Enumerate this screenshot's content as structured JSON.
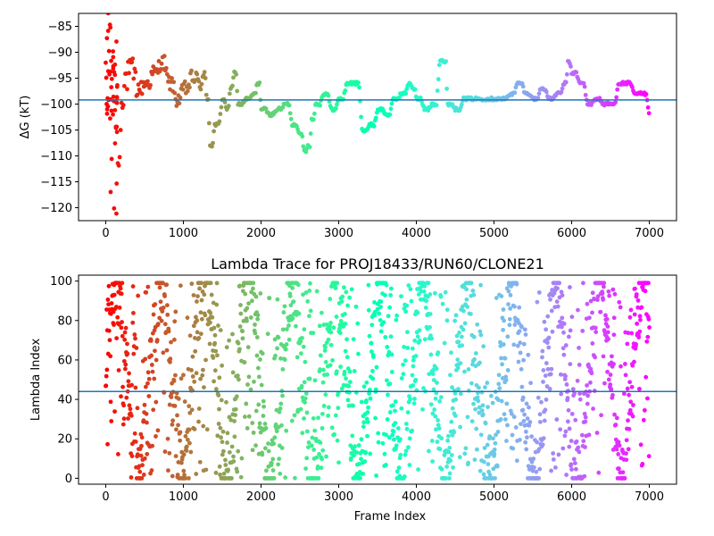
{
  "chart_data": [
    {
      "type": "scatter",
      "title": "",
      "xlabel": "",
      "ylabel": "ΔG (kT)",
      "xlim": [
        -350,
        7350
      ],
      "ylim": [
        -122.5,
        -82.5
      ],
      "xticks": [
        0,
        1000,
        2000,
        3000,
        4000,
        5000,
        6000,
        7000
      ],
      "xtick_labels": [
        "0",
        "1000",
        "2000",
        "3000",
        "4000",
        "5000",
        "6000",
        "7000"
      ],
      "yticks": [
        -85,
        -90,
        -95,
        -100,
        -105,
        -110,
        -115,
        -120
      ],
      "ytick_labels": [
        "−85",
        "−90",
        "−95",
        "−100",
        "−105",
        "−110",
        "−115",
        "−120"
      ],
      "colormap": "rainbow (red at frame 0 to violet at frame 7000)",
      "hline": -99.2,
      "hline_color": "#1f77b4",
      "profile": [
        [
          0,
          -100
        ],
        [
          40,
          -96
        ],
        [
          80,
          -89
        ],
        [
          120,
          -104
        ],
        [
          160,
          -111
        ],
        [
          200,
          -98
        ],
        [
          250,
          -95
        ],
        [
          300,
          -94
        ],
        [
          400,
          -97
        ],
        [
          500,
          -96
        ],
        [
          600,
          -94
        ],
        [
          700,
          -92
        ],
        [
          800,
          -96
        ],
        [
          900,
          -99
        ],
        [
          1000,
          -97
        ],
        [
          1100,
          -95
        ],
        [
          1200,
          -96
        ],
        [
          1250,
          -95
        ],
        [
          1300,
          -99
        ],
        [
          1340,
          -108
        ],
        [
          1400,
          -104
        ],
        [
          1500,
          -99
        ],
        [
          1550,
          -101
        ],
        [
          1600,
          -97
        ],
        [
          1650,
          -94
        ],
        [
          1700,
          -100
        ],
        [
          1800,
          -99
        ],
        [
          1900,
          -98
        ],
        [
          1950,
          -96
        ],
        [
          2000,
          -101
        ],
        [
          2100,
          -102
        ],
        [
          2200,
          -101
        ],
        [
          2300,
          -100
        ],
        [
          2400,
          -104
        ],
        [
          2500,
          -106
        ],
        [
          2550,
          -109
        ],
        [
          2600,
          -108
        ],
        [
          2650,
          -103
        ],
        [
          2700,
          -100
        ],
        [
          2800,
          -98
        ],
        [
          2900,
          -101
        ],
        [
          3000,
          -99
        ],
        [
          3100,
          -96
        ],
        [
          3200,
          -96
        ],
        [
          3300,
          -105
        ],
        [
          3400,
          -104
        ],
        [
          3500,
          -101
        ],
        [
          3600,
          -102
        ],
        [
          3700,
          -99
        ],
        [
          3800,
          -98
        ],
        [
          3900,
          -96
        ],
        [
          3950,
          -97
        ],
        [
          4000,
          -99
        ],
        [
          4100,
          -101
        ],
        [
          4200,
          -100
        ],
        [
          4300,
          -91.5
        ],
        [
          4350,
          -92
        ],
        [
          4400,
          -100
        ],
        [
          4500,
          -101
        ],
        [
          4600,
          -99
        ],
        [
          4700,
          -99
        ],
        [
          4800,
          -99
        ],
        [
          4900,
          -99
        ],
        [
          5000,
          -99
        ],
        [
          5100,
          -99
        ],
        [
          5200,
          -98
        ],
        [
          5300,
          -96
        ],
        [
          5400,
          -98
        ],
        [
          5500,
          -99
        ],
        [
          5600,
          -97
        ],
        [
          5700,
          -99
        ],
        [
          5800,
          -98
        ],
        [
          5900,
          -96
        ],
        [
          5950,
          -92
        ],
        [
          6000,
          -94
        ],
        [
          6100,
          -96
        ],
        [
          6200,
          -100
        ],
        [
          6300,
          -99
        ],
        [
          6400,
          -100
        ],
        [
          6500,
          -100
        ],
        [
          6600,
          -96
        ],
        [
          6700,
          -96
        ],
        [
          6800,
          -98
        ],
        [
          6900,
          -98
        ],
        [
          7000,
          -102
        ]
      ],
      "frame_count": 7000
    },
    {
      "type": "scatter",
      "title": "Lambda Trace for PROJ18433/RUN60/CLONE21",
      "xlabel": "Frame Index",
      "ylabel": "Lambda Index",
      "xlim": [
        -350,
        7350
      ],
      "ylim": [
        -3,
        103
      ],
      "xticks": [
        0,
        1000,
        2000,
        3000,
        4000,
        5000,
        6000,
        7000
      ],
      "xtick_labels": [
        "0",
        "1000",
        "2000",
        "3000",
        "4000",
        "5000",
        "6000",
        "7000"
      ],
      "yticks": [
        0,
        20,
        40,
        60,
        80,
        100
      ],
      "ytick_labels": [
        "0",
        "20",
        "40",
        "60",
        "80",
        "100"
      ],
      "colormap": "rainbow (red at frame 0 to violet at frame 7000)",
      "hline": 44,
      "hline_color": "#1f77b4",
      "value_range": [
        0,
        99
      ],
      "frame_count": 7000
    }
  ]
}
